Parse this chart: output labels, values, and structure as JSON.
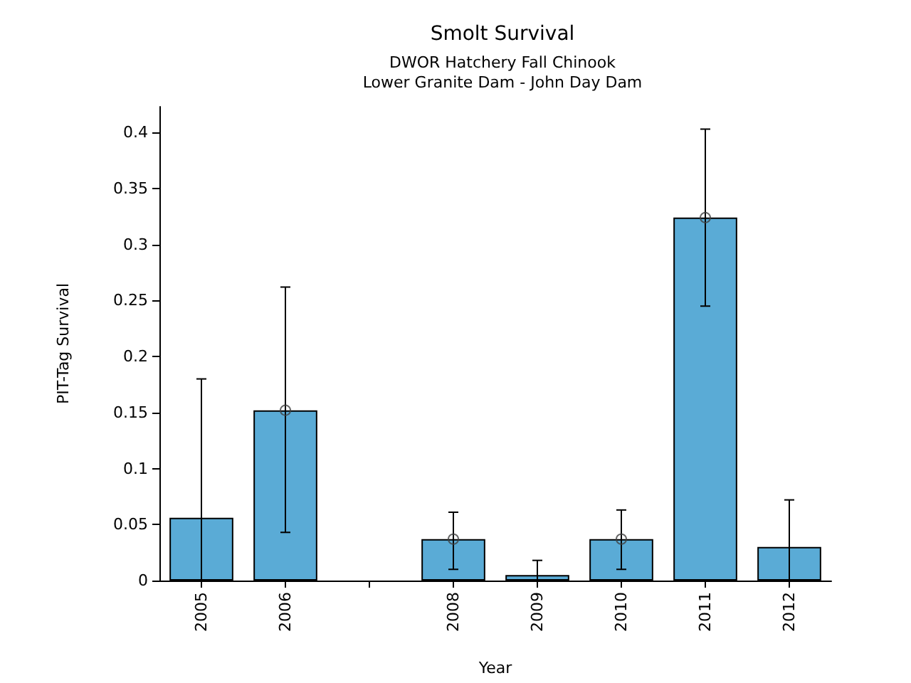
{
  "chart_data": {
    "type": "bar",
    "title": "Smolt Survival",
    "subtitle": "DWOR Hatchery Fall Chinook\nLower Granite Dam - John Day Dam",
    "xlabel": "Year",
    "ylabel": "PIT-Tag Survival",
    "categories": [
      "2005",
      "2006",
      null,
      "2008",
      "2009",
      "2010",
      "2011",
      "2012"
    ],
    "series": [
      {
        "color": "#5aabd6",
        "values": [
          0.056,
          0.152,
          null,
          0.037,
          0.005,
          0.037,
          0.324,
          0.03
        ],
        "errors": [
          [
            0,
            0.18
          ],
          [
            0.043,
            0.262
          ],
          null,
          [
            0.01,
            0.061
          ],
          [
            0,
            0.018
          ],
          [
            0.01,
            0.063
          ],
          [
            0.245,
            0.403
          ],
          [
            0,
            0.072
          ]
        ]
      },
      {
        "type": "scatter",
        "color": "#404040",
        "marker": "circle",
        "values": [
          null,
          0.152,
          null,
          0.037,
          null,
          0.037,
          0.324,
          null
        ]
      }
    ],
    "ylim": [
      0,
      0.423
    ],
    "yticks": [
      0,
      0.05,
      0.1,
      0.15,
      0.2,
      0.25,
      0.3,
      0.35,
      0.4
    ],
    "grid": false
  }
}
